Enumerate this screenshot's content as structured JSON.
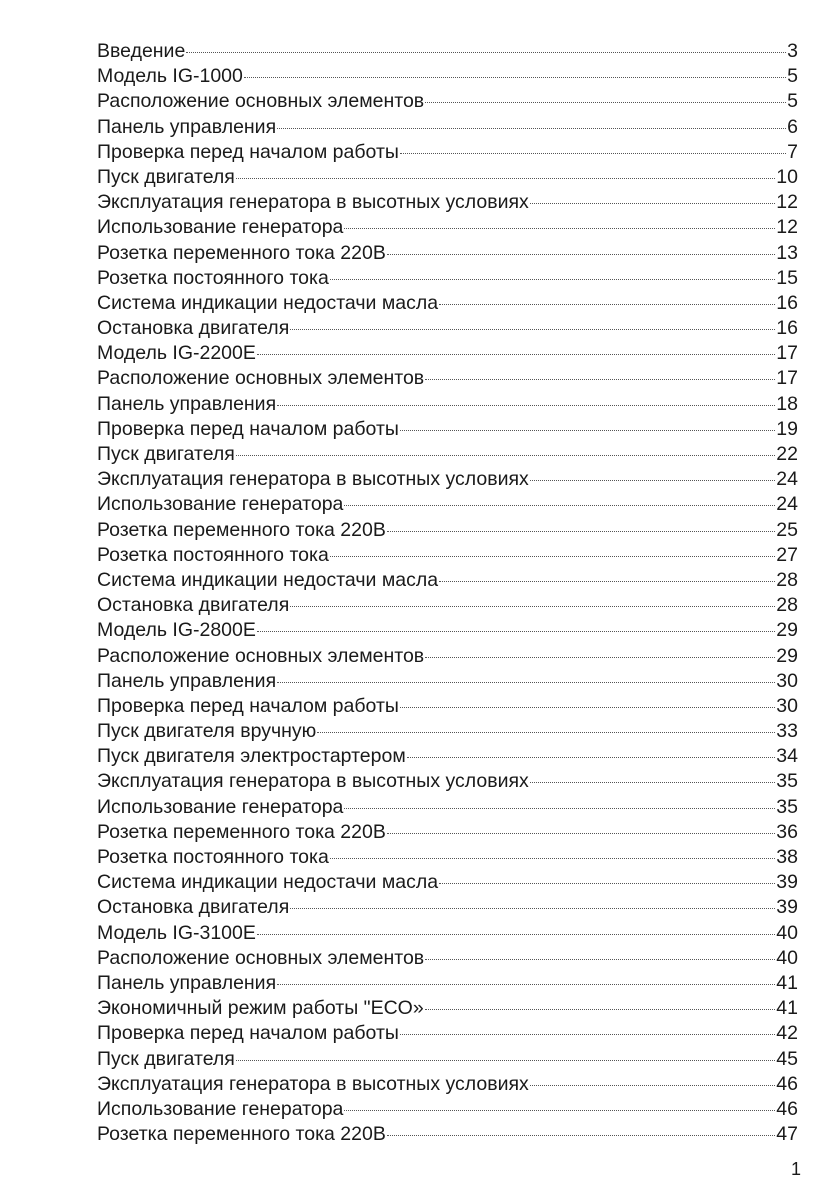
{
  "toc": [
    {
      "title": "Введение",
      "page": "3"
    },
    {
      "title": "Модель IG-1000",
      "page": "5"
    },
    {
      "title": "Расположение основных элементов",
      "page": "5"
    },
    {
      "title": "Панель управления",
      "page": "6"
    },
    {
      "title": "Проверка перед началом работы",
      "page": "7"
    },
    {
      "title": "Пуск двигателя",
      "page": "10"
    },
    {
      "title": "Эксплуатация генератора в высотных условиях",
      "page": "12"
    },
    {
      "title": "Использование генератора",
      "page": "12"
    },
    {
      "title": "Розетка переменного тока 220В",
      "page": "13"
    },
    {
      "title": "Розетка постоянного тока",
      "page": "15"
    },
    {
      "title": "Система индикации недостачи масла",
      "page": "16"
    },
    {
      "title": "Остановка двигателя",
      "page": "16"
    },
    {
      "title": "Модель IG-2200E",
      "page": "17"
    },
    {
      "title": "Расположение основных элементов",
      "page": "17"
    },
    {
      "title": "Панель управления",
      "page": "18"
    },
    {
      "title": "Проверка перед началом работы",
      "page": "19"
    },
    {
      "title": "Пуск двигателя",
      "page": "22"
    },
    {
      "title": "Эксплуатация генератора в высотных условиях",
      "page": "24"
    },
    {
      "title": "Использование генератора",
      "page": "24"
    },
    {
      "title": "Розетка переменного тока 220В",
      "page": "25"
    },
    {
      "title": "Розетка постоянного тока",
      "page": "27"
    },
    {
      "title": "Система индикации недостачи масла",
      "page": "28"
    },
    {
      "title": "Остановка двигателя",
      "page": "28"
    },
    {
      "title": "Модель IG-2800E",
      "page": "29"
    },
    {
      "title": "Расположение основных элементов",
      "page": "29"
    },
    {
      "title": "Панель управления",
      "page": "30"
    },
    {
      "title": "Проверка перед началом работы",
      "page": "30"
    },
    {
      "title": "Пуск двигателя вручную",
      "page": "33"
    },
    {
      "title": "Пуск двигателя электростартером",
      "page": "34"
    },
    {
      "title": "Эксплуатация генератора в высотных условиях",
      "page": "35"
    },
    {
      "title": "Использование генератора",
      "page": "35"
    },
    {
      "title": "Розетка переменного тока 220В",
      "page": "36"
    },
    {
      "title": "Розетка постоянного тока",
      "page": "38"
    },
    {
      "title": "Система индикации недостачи масла",
      "page": "39"
    },
    {
      "title": "Остановка двигателя",
      "page": "39"
    },
    {
      "title": "Модель IG-3100E",
      "page": "40"
    },
    {
      "title": "Расположение основных элементов",
      "page": "40"
    },
    {
      "title": "Панель управления",
      "page": "41"
    },
    {
      "title": "Экономичный режим работы \"ECO»",
      "page": "41"
    },
    {
      "title": "Проверка перед началом работы",
      "page": "42"
    },
    {
      "title": "Пуск двигателя",
      "page": "45"
    },
    {
      "title": "Эксплуатация генератора в высотных условиях",
      "page": "46"
    },
    {
      "title": "Использование генератора",
      "page": "46"
    },
    {
      "title": "Розетка переменного тока 220В",
      "page": "47"
    }
  ],
  "page_number": "1"
}
